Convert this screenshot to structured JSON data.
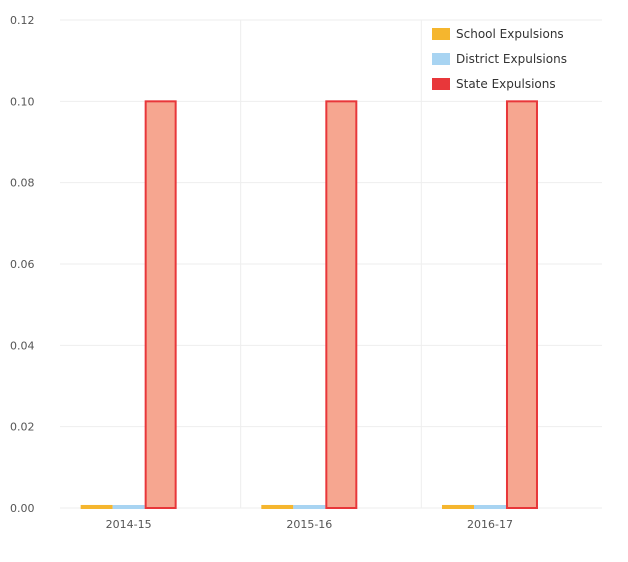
{
  "chart_data": {
    "type": "bar",
    "categories": [
      "2014-15",
      "2015-16",
      "2016-17"
    ],
    "series": [
      {
        "name": "School Expulsions",
        "values": [
          0.0005,
          0.0005,
          0.0005
        ],
        "color": "#f5b62e",
        "fill": "#f5b62e"
      },
      {
        "name": "District Expulsions",
        "values": [
          0.0004,
          0.0004,
          0.0004
        ],
        "color": "#a8d4f2",
        "fill": "#c7e3f6"
      },
      {
        "name": "State Expulsions",
        "values": [
          0.1,
          0.1,
          0.1
        ],
        "color": "#e8373a",
        "fill": "#f6a690"
      }
    ],
    "ylim": [
      0,
      0.12
    ],
    "yticks": [
      "0.00",
      "0.02",
      "0.04",
      "0.06",
      "0.08",
      "0.10",
      "0.12"
    ],
    "grid": true,
    "legend_position": "top-right"
  }
}
